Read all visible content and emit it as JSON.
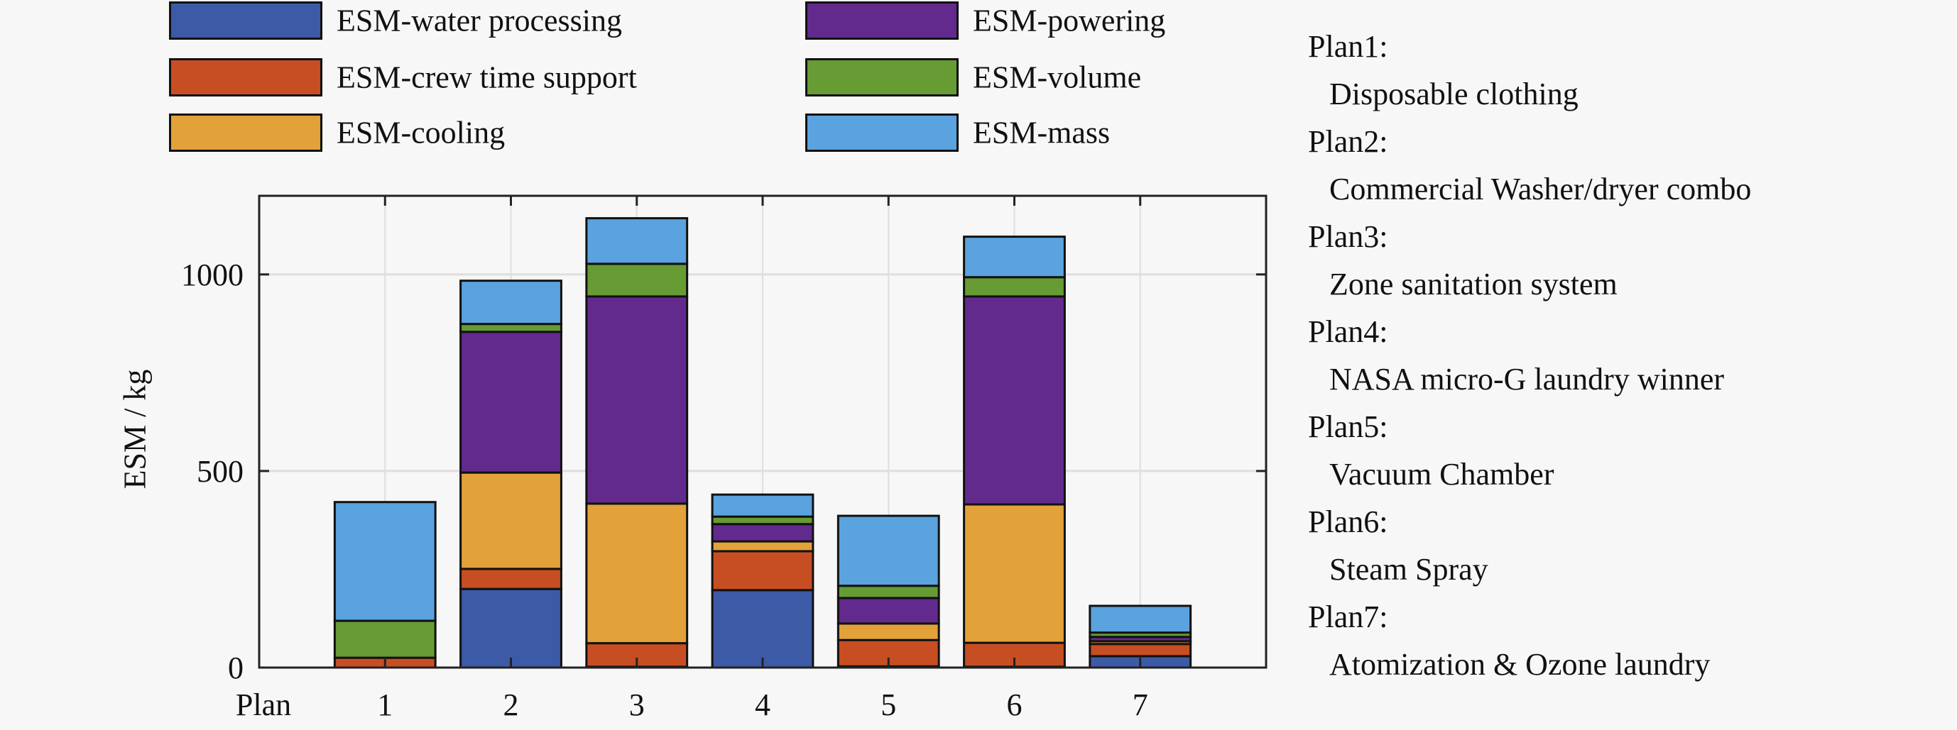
{
  "chart_data": {
    "type": "bar",
    "stacked": true,
    "title": "",
    "xlabel": "Plan",
    "ylabel": "ESM / kg",
    "categories": [
      "1",
      "2",
      "3",
      "4",
      "5",
      "6",
      "7"
    ],
    "xlim": [
      0,
      8
    ],
    "ylim": [
      0,
      1200
    ],
    "yticks": [
      0,
      500,
      1000
    ],
    "ytick_labels": [
      "0",
      "500",
      "1000"
    ],
    "grid": true,
    "legend_position": "top",
    "series": [
      {
        "name": "ESM-water processing",
        "color": "#3D5AA6",
        "values": [
          0,
          200,
          2,
          197,
          3,
          2,
          29
        ]
      },
      {
        "name": "ESM-crew time support",
        "color": "#C74E23",
        "values": [
          25,
          51,
          60,
          99,
          67,
          61,
          31
        ]
      },
      {
        "name": "ESM-cooling",
        "color": "#E3A13A",
        "values": [
          0,
          245,
          355,
          25,
          42,
          352,
          7
        ]
      },
      {
        "name": "ESM-powering",
        "color": "#632A8E",
        "values": [
          0,
          358,
          527,
          44,
          65,
          529,
          11
        ]
      },
      {
        "name": "ESM-volume",
        "color": "#679B34",
        "values": [
          94,
          20,
          83,
          19,
          31,
          49,
          11
        ]
      },
      {
        "name": "ESM-mass",
        "color": "#5AA3DE",
        "values": [
          302,
          110,
          116,
          56,
          178,
          103,
          68
        ]
      }
    ],
    "legend_order": [
      0,
      3,
      1,
      4,
      2,
      5
    ]
  },
  "side_panel": [
    {
      "plan": "Plan1:",
      "desc": "Disposable clothing"
    },
    {
      "plan": "Plan2:",
      "desc": "Commercial Washer/dryer combo"
    },
    {
      "plan": "Plan3:",
      "desc": "Zone sanitation system"
    },
    {
      "plan": "Plan4:",
      "desc": "NASA micro-G laundry winner"
    },
    {
      "plan": "Plan5:",
      "desc": "Vacuum Chamber"
    },
    {
      "plan": "Plan6:",
      "desc": "Steam Spray"
    },
    {
      "plan": "Plan7:",
      "desc": "Atomization & Ozone laundry"
    }
  ]
}
